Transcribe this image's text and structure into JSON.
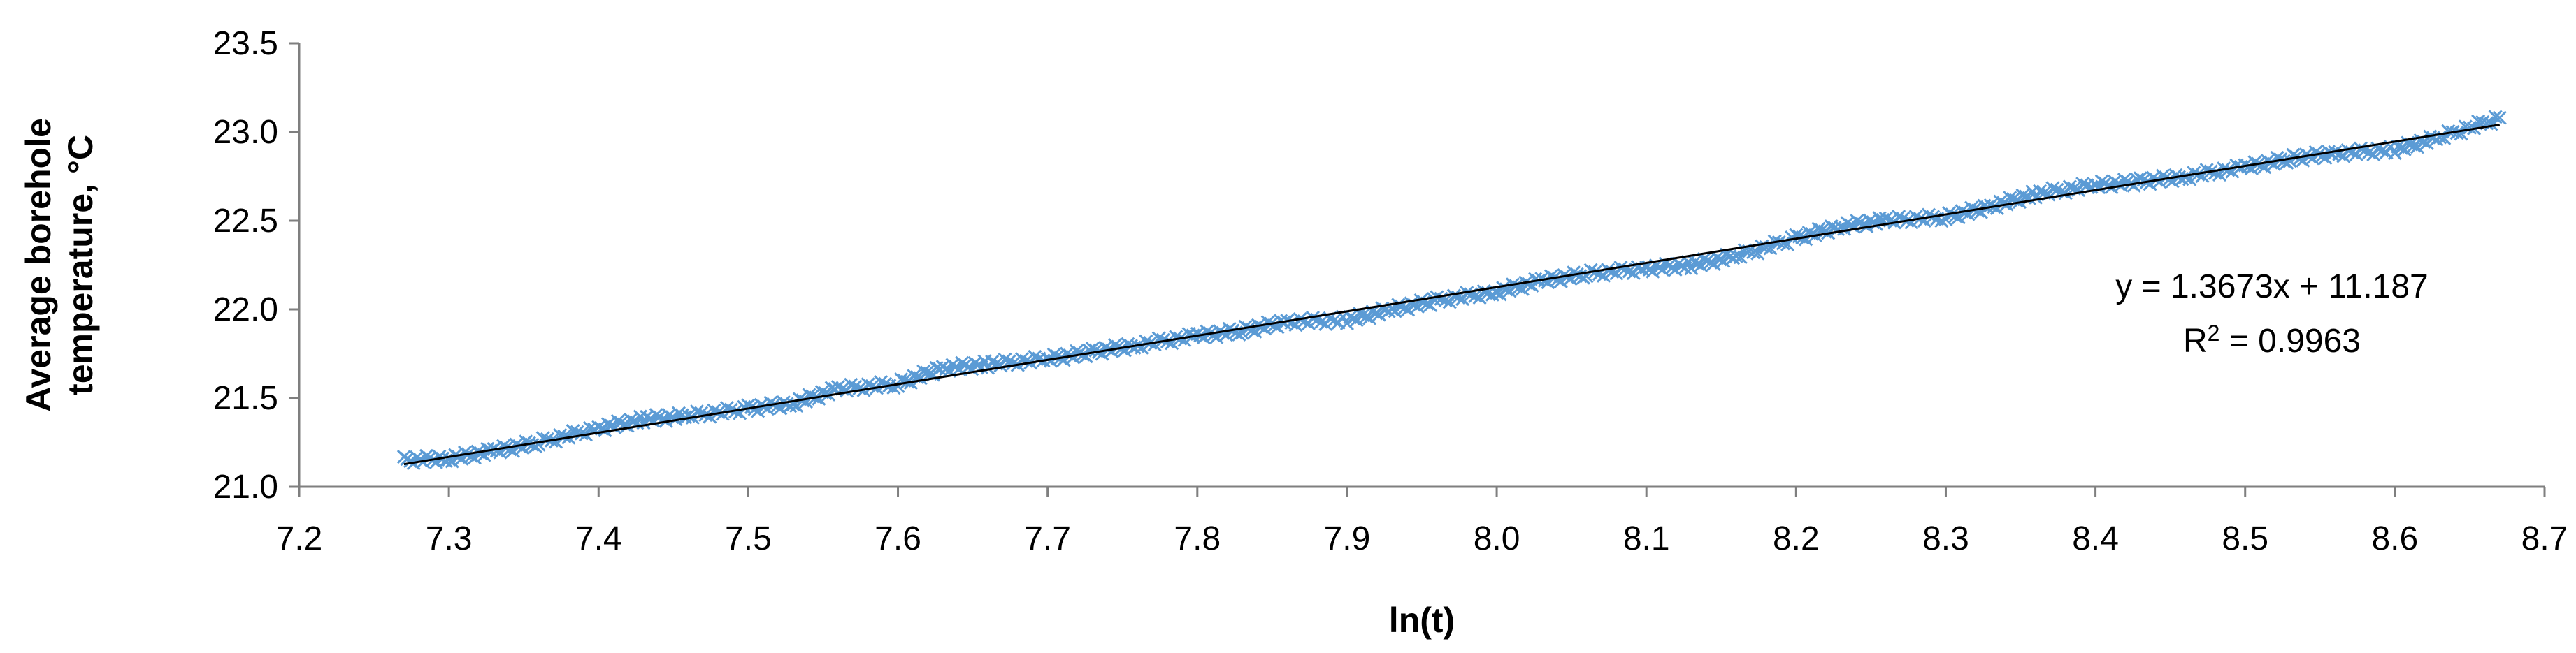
{
  "chart_data": {
    "type": "scatter",
    "title": "",
    "xlabel": "ln(t)",
    "ylabel_lines": [
      "Average borehole",
      "temperature, °C"
    ],
    "xlim": [
      7.2,
      8.7
    ],
    "ylim": [
      21.0,
      23.5
    ],
    "x_ticks": [
      "7.2",
      "7.3",
      "7.4",
      "7.5",
      "7.6",
      "7.7",
      "7.8",
      "7.9",
      "8.0",
      "8.1",
      "8.2",
      "8.3",
      "8.4",
      "8.5",
      "8.6",
      "8.7"
    ],
    "y_ticks": [
      "21.0",
      "21.5",
      "22.0",
      "22.5",
      "23.0",
      "23.5"
    ],
    "grid": false,
    "colors": {
      "marker": "#5b9bd5",
      "trendline": "#000000",
      "axis": "#7f7f7f"
    },
    "marker": "x",
    "series": [
      {
        "x": [
          7.27,
          7.3,
          7.33,
          7.36,
          7.4,
          7.43,
          7.46,
          7.5,
          7.53,
          7.56,
          7.6,
          7.63,
          7.66,
          7.7,
          7.73,
          7.76,
          7.8,
          7.83,
          7.86,
          7.9,
          7.93,
          7.96,
          8.0,
          8.03,
          8.06,
          8.1,
          8.13,
          8.16,
          8.2,
          8.23,
          8.26,
          8.3,
          8.33,
          8.36,
          8.4,
          8.43,
          8.46,
          8.5,
          8.53,
          8.56,
          8.6,
          8.63,
          8.67
        ],
        "values": [
          21.15,
          21.16,
          21.2,
          21.25,
          21.33,
          21.38,
          21.4,
          21.44,
          21.47,
          21.55,
          21.58,
          21.67,
          21.69,
          21.72,
          21.76,
          21.8,
          21.85,
          21.88,
          21.93,
          21.94,
          22.0,
          22.05,
          22.1,
          22.16,
          22.2,
          22.23,
          22.25,
          22.3,
          22.4,
          22.47,
          22.5,
          22.52,
          22.58,
          22.65,
          22.7,
          22.72,
          22.75,
          22.8,
          22.85,
          22.88,
          22.9,
          22.97,
          23.08
        ]
      }
    ],
    "trendline": {
      "slope": 1.3673,
      "intercept": 11.187,
      "x_range": [
        7.27,
        8.67
      ],
      "equation": "y = 1.3673x + 11.187",
      "r2_prefix": "R",
      "r2_sup": "2",
      "r2_suffix": " = 0.9963"
    }
  }
}
